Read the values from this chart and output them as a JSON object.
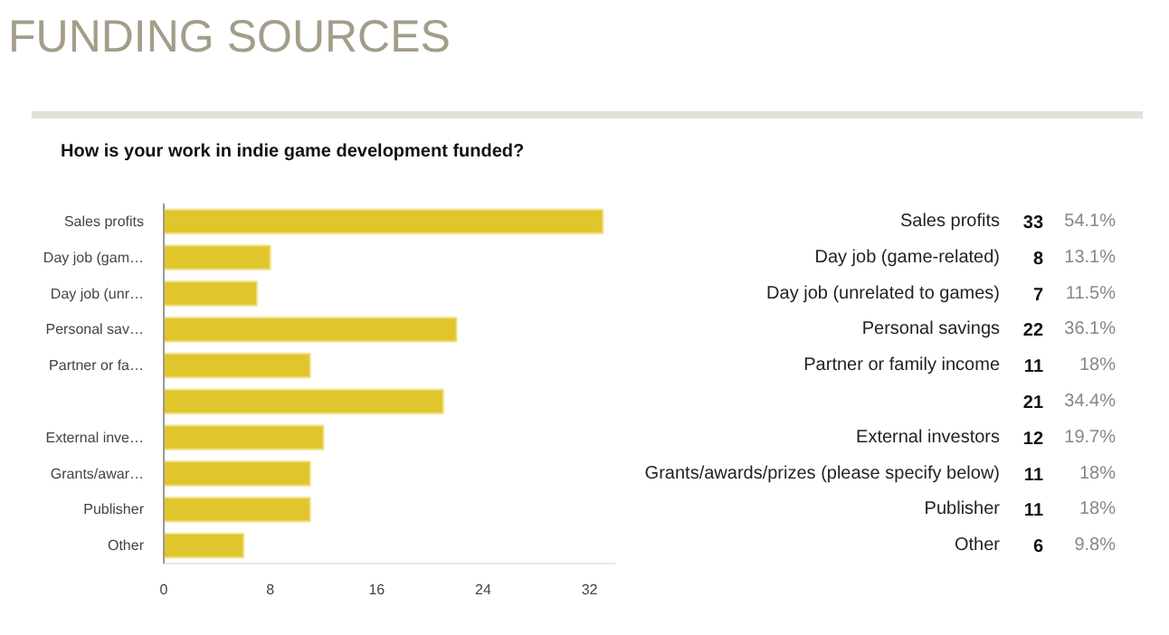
{
  "chart_data": {
    "type": "bar",
    "orientation": "horizontal",
    "title": "FUNDING SOURCES",
    "subtitle": "How is your work in indie game development funded?",
    "categories": [
      "Sales profits",
      "Day job (gam…",
      "Day job (unr…",
      "Personal sav…",
      "Partner or fa…",
      null,
      "External inve…",
      "Grants/awar…",
      "Publisher",
      "Other"
    ],
    "values": [
      33,
      8,
      7,
      22,
      11,
      21,
      12,
      11,
      11,
      6
    ],
    "color": "#e0c52c",
    "xlim": [
      0,
      34
    ],
    "xticks": [
      0,
      8,
      16,
      24,
      32
    ],
    "grid": false,
    "value_labels": [
      "33",
      "8",
      "7",
      "22",
      "11",
      "21",
      "12",
      "11",
      "11",
      "6"
    ],
    "annotations": [
      "Sales profits",
      "Day job (game-related)",
      "Day job (unrelated to games)",
      "Personal savings",
      "Partner or family income",
      "External investors",
      "Grants/awards/prizes (please specify below)",
      "Publisher",
      "Other",
      "54.1%",
      "13.1%",
      "11.5%",
      "36.1%",
      "18%",
      "34.4%",
      "19.7%",
      "18%",
      "18%",
      "9.8%"
    ]
  }
}
